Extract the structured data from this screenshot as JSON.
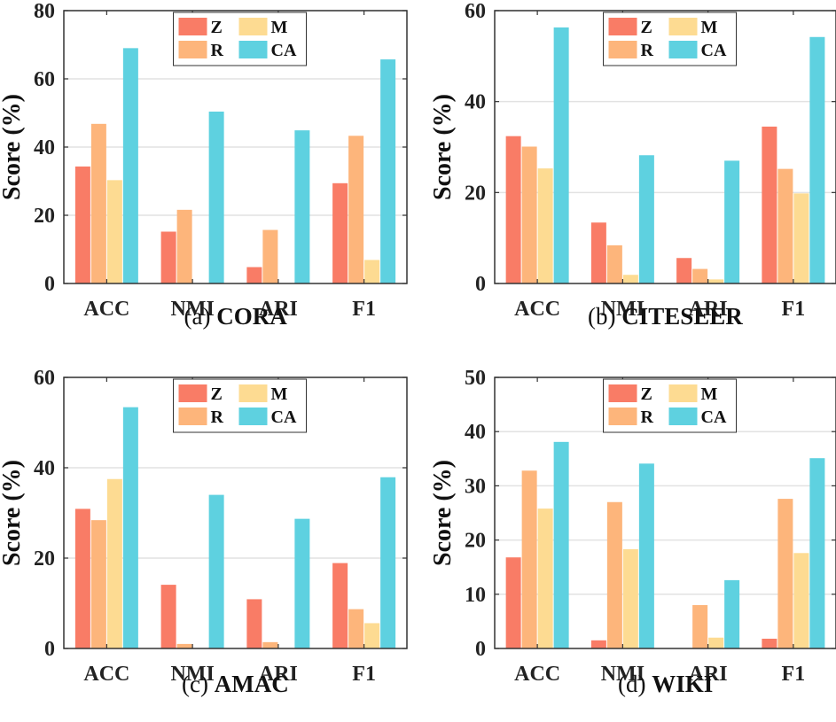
{
  "chart_data": [
    {
      "type": "bar",
      "caption_prefix": "(a)",
      "caption_name": "CORA",
      "ylabel": "Score (%)",
      "ylim": [
        0,
        80
      ],
      "yticks": [
        0,
        20,
        40,
        60,
        80
      ],
      "categories": [
        "ACC",
        "NMI",
        "ARI",
        "F1"
      ],
      "series": [
        {
          "name": "Z",
          "values": [
            34.3,
            15.2,
            4.8,
            29.4
          ]
        },
        {
          "name": "R",
          "values": [
            46.8,
            21.6,
            15.7,
            43.3
          ]
        },
        {
          "name": "M",
          "values": [
            30.3,
            0,
            0,
            6.9
          ]
        },
        {
          "name": "CA",
          "values": [
            69.0,
            50.4,
            44.9,
            65.7
          ]
        }
      ],
      "grid": true,
      "legend": "top-center"
    },
    {
      "type": "bar",
      "caption_prefix": "(b)",
      "caption_name": "CITESEER",
      "ylabel": "Score (%)",
      "ylim": [
        0,
        60
      ],
      "yticks": [
        0,
        20,
        40,
        60
      ],
      "categories": [
        "ACC",
        "NMI",
        "ARI",
        "F1"
      ],
      "series": [
        {
          "name": "Z",
          "values": [
            32.4,
            13.4,
            5.6,
            34.5
          ]
        },
        {
          "name": "R",
          "values": [
            30.1,
            8.4,
            3.2,
            25.2
          ]
        },
        {
          "name": "M",
          "values": [
            25.3,
            1.9,
            0.9,
            19.8
          ]
        },
        {
          "name": "CA",
          "values": [
            56.3,
            28.2,
            27.0,
            54.2
          ]
        }
      ],
      "grid": true,
      "legend": "top-center"
    },
    {
      "type": "bar",
      "caption_prefix": "(c)",
      "caption_name": "AMAC",
      "ylabel": "Score (%)",
      "ylim": [
        0,
        60
      ],
      "yticks": [
        0,
        20,
        40,
        60
      ],
      "categories": [
        "ACC",
        "NMI",
        "ARI",
        "F1"
      ],
      "series": [
        {
          "name": "Z",
          "values": [
            30.9,
            14.1,
            10.9,
            18.9
          ]
        },
        {
          "name": "R",
          "values": [
            28.4,
            1.0,
            1.4,
            8.7
          ]
        },
        {
          "name": "M",
          "values": [
            37.5,
            0,
            0,
            5.6
          ]
        },
        {
          "name": "CA",
          "values": [
            53.4,
            34.0,
            28.7,
            37.9
          ]
        }
      ],
      "grid": true,
      "legend": "top-center"
    },
    {
      "type": "bar",
      "caption_prefix": "(d)",
      "caption_name": "WIKI",
      "ylabel": "Score (%)",
      "ylim": [
        0,
        50
      ],
      "yticks": [
        0,
        10,
        20,
        30,
        40,
        50
      ],
      "categories": [
        "ACC",
        "NMI",
        "ARI",
        "F1"
      ],
      "series": [
        {
          "name": "Z",
          "values": [
            16.8,
            1.5,
            0,
            1.8
          ]
        },
        {
          "name": "R",
          "values": [
            32.8,
            27.0,
            8.0,
            27.6
          ]
        },
        {
          "name": "M",
          "values": [
            25.8,
            18.3,
            2.0,
            17.6
          ]
        },
        {
          "name": "CA",
          "values": [
            38.1,
            34.1,
            12.6,
            35.1
          ]
        }
      ],
      "grid": true,
      "legend": "top-center"
    }
  ],
  "colors": {
    "Z": "#F97C66",
    "R": "#FDB57B",
    "M": "#FDDB92",
    "CA": "#5ED1E0"
  }
}
